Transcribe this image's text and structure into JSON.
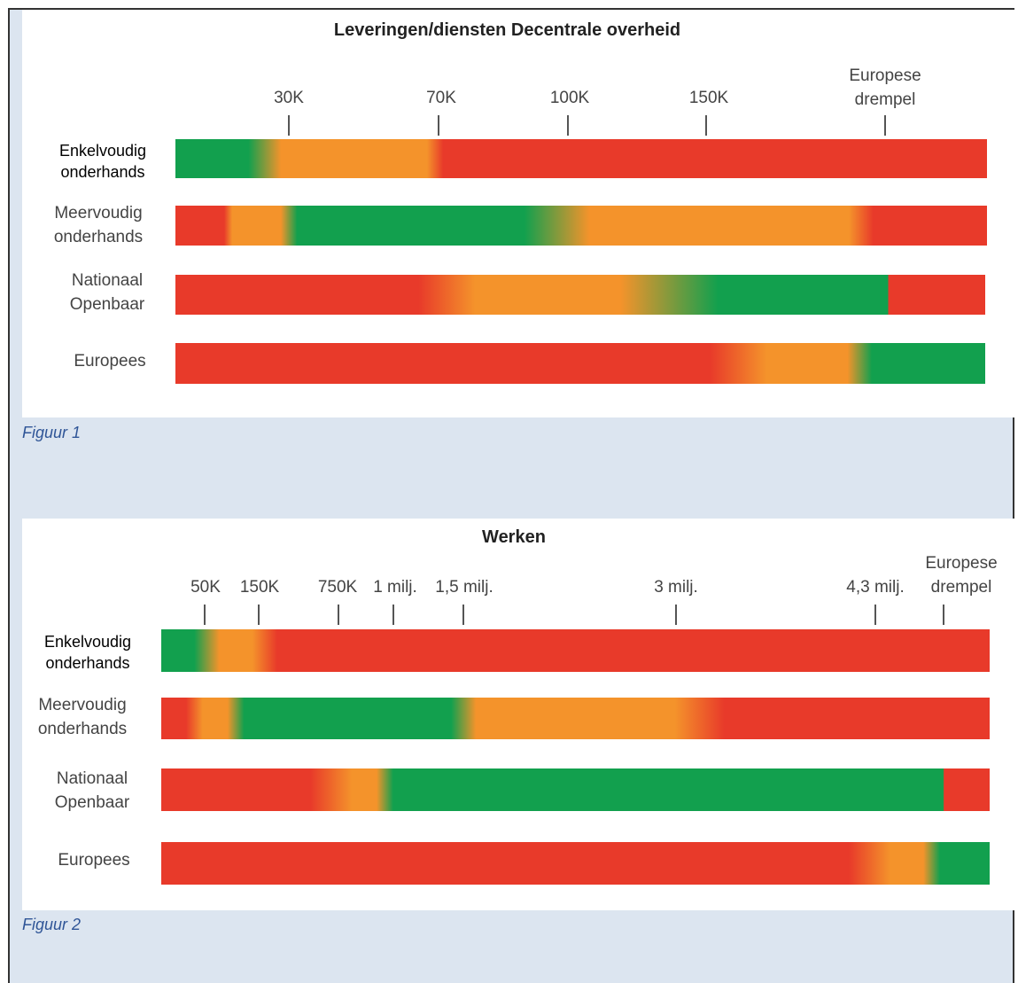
{
  "figure1": {
    "title": "Leveringen/diensten Decentrale overheid",
    "caption": "Figuur 1",
    "ticks": [
      "30K",
      "70K",
      "100K",
      "150K",
      "Europese\ndrempel"
    ],
    "rows": [
      {
        "label": "Enkelvoudig\nonderhands"
      },
      {
        "label": "Meervoudig\nonderhands"
      },
      {
        "label": "Nationaal\nOpenbaar"
      },
      {
        "label": "Europees"
      }
    ]
  },
  "figure2": {
    "title": "Werken",
    "caption": "Figuur 2",
    "ticks": [
      "50K",
      "150K",
      "750K",
      "1 milj.",
      "1,5 milj.",
      "3 milj.",
      "4,3 milj.",
      "Europese\ndrempel"
    ],
    "rows": [
      {
        "label": "Enkelvoudig\nonderhands"
      },
      {
        "label": "Meervoudig\nonderhands"
      },
      {
        "label": "Nationaal\nOpenbaar"
      },
      {
        "label": "Europees"
      }
    ]
  },
  "colors": {
    "green": "#12a04e",
    "orange": "#f4932b",
    "red": "#e83a2a",
    "panel_bg": "#dce5f0"
  }
}
